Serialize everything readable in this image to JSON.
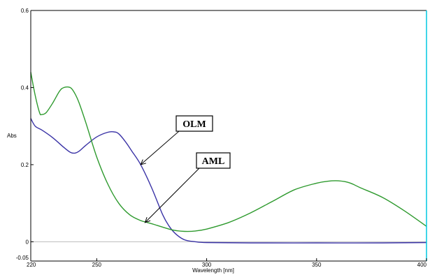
{
  "chart_data": {
    "type": "line",
    "xlabel": "Wavelength [nm]",
    "ylabel": "Abs",
    "xlim": [
      220,
      400
    ],
    "ylim": [
      -0.05,
      0.6
    ],
    "x_ticks": [
      220,
      250,
      300,
      350,
      400
    ],
    "y_ticks": [
      -0.05,
      0,
      0.2,
      0.4,
      0.6
    ],
    "x_tick_labels": [
      "220",
      "250",
      "300",
      "350",
      "400"
    ],
    "y_tick_labels": [
      "-0.05",
      "0",
      "0.2",
      "0.4",
      "0.6"
    ],
    "grid": false,
    "baseline": 0,
    "colors": {
      "blue": "#3a33a6",
      "green": "#2e9a2e",
      "baseline": "#bdbdbd"
    },
    "series": [
      {
        "color": "blue",
        "x": [
          220,
          222,
          225,
          230,
          235,
          238,
          240,
          242,
          245,
          250,
          255,
          258,
          260,
          263,
          266,
          270,
          275,
          280,
          283,
          286,
          290,
          295,
          300,
          320,
          350,
          380,
          400
        ],
        "y": [
          0.32,
          0.3,
          0.29,
          0.27,
          0.245,
          0.232,
          0.23,
          0.235,
          0.25,
          0.272,
          0.284,
          0.285,
          0.28,
          0.26,
          0.235,
          0.2,
          0.14,
          0.07,
          0.04,
          0.02,
          0.005,
          0.0,
          -0.002,
          -0.003,
          -0.003,
          -0.003,
          -0.002
        ]
      },
      {
        "color": "green",
        "x": [
          220,
          222,
          224,
          225,
          227,
          230,
          233,
          235,
          238,
          240,
          242,
          245,
          250,
          255,
          260,
          265,
          270,
          273,
          276,
          280,
          285,
          290,
          295,
          300,
          310,
          320,
          330,
          340,
          350,
          355,
          360,
          365,
          370,
          380,
          390,
          400
        ],
        "y": [
          0.44,
          0.38,
          0.335,
          0.33,
          0.335,
          0.36,
          0.39,
          0.4,
          0.4,
          0.385,
          0.36,
          0.31,
          0.22,
          0.15,
          0.1,
          0.07,
          0.055,
          0.05,
          0.045,
          0.038,
          0.03,
          0.027,
          0.028,
          0.033,
          0.05,
          0.075,
          0.105,
          0.135,
          0.152,
          0.157,
          0.158,
          0.153,
          0.14,
          0.115,
          0.08,
          0.04
        ]
      }
    ],
    "annotations": [
      {
        "text": "OLM",
        "target_x": 270,
        "target_y": 0.2
      },
      {
        "text": "AML",
        "target_x": 272,
        "target_y": 0.05
      }
    ]
  }
}
